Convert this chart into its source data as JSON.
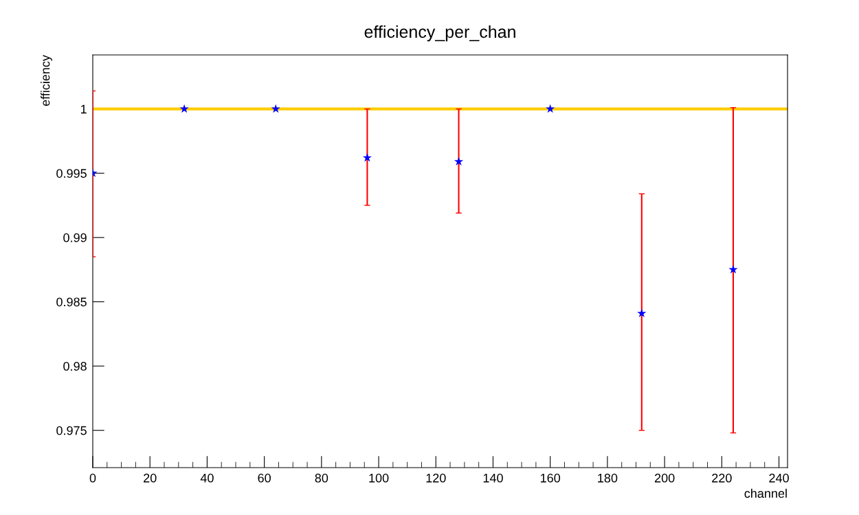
{
  "chart_data": {
    "type": "scatter",
    "title": "efficiency_per_chan",
    "xlabel": "channel",
    "ylabel": "efficiency",
    "x": [
      0,
      32,
      64,
      96,
      128,
      160,
      192,
      224
    ],
    "series": [
      {
        "color": "#0000ff",
        "values": [
          0.995,
          1.0,
          1.0,
          0.9962,
          0.9959,
          1.0,
          0.9841,
          0.9875
        ],
        "errors": [
          [
            0.9885,
            1.0014
          ],
          null,
          null,
          [
            0.9925,
            1.0
          ],
          [
            0.9919,
            1.0
          ],
          null,
          [
            0.975,
            0.9934
          ],
          [
            0.9748,
            1.0001
          ]
        ]
      }
    ],
    "marker": "star",
    "xlim": [
      0,
      243
    ],
    "ylim": [
      0.9721,
      1.0042
    ],
    "xticks": [
      0,
      20,
      40,
      60,
      80,
      100,
      120,
      140,
      160,
      180,
      200,
      220,
      240
    ],
    "yticks": [
      0.975,
      0.98,
      0.985,
      0.99,
      0.995,
      1
    ],
    "ref_lines": [
      {
        "axis": "y",
        "value": 1,
        "color": "#ffcc00"
      }
    ],
    "grid": false
  }
}
